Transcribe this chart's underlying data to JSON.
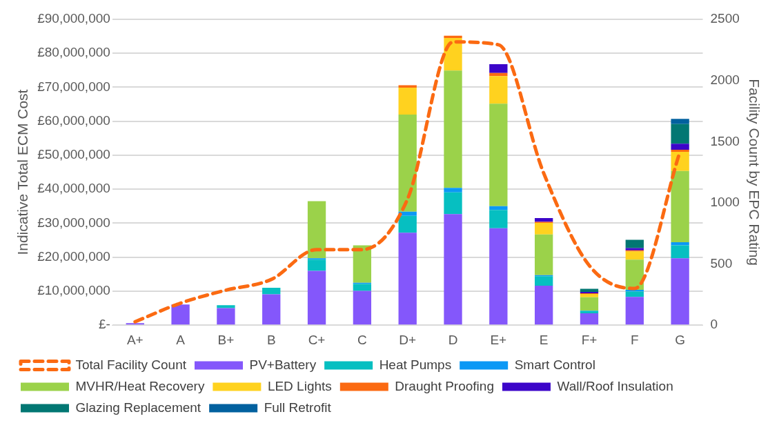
{
  "chart_data": {
    "type": "bar",
    "stacked": true,
    "ylabel": "Indicative Total ECM Cost",
    "y2label": "Facility Count by EPC Rating",
    "categories": [
      "A+",
      "A",
      "B+",
      "B",
      "C+",
      "C",
      "D+",
      "D",
      "E+",
      "E",
      "F+",
      "F",
      "G"
    ],
    "ylim": [
      0,
      90000000
    ],
    "yticks": [
      {
        "value": 0,
        "label": "£-"
      },
      {
        "value": 10000000,
        "label": "£10,000,000"
      },
      {
        "value": 20000000,
        "label": "£20,000,000"
      },
      {
        "value": 30000000,
        "label": "£30,000,000"
      },
      {
        "value": 40000000,
        "label": "£40,000,000"
      },
      {
        "value": 50000000,
        "label": "£50,000,000"
      },
      {
        "value": 60000000,
        "label": "£60,000,000"
      },
      {
        "value": 70000000,
        "label": "£70,000,000"
      },
      {
        "value": 80000000,
        "label": "£80,000,000"
      },
      {
        "value": 90000000,
        "label": "£90,000,000"
      }
    ],
    "y2lim": [
      0,
      2500
    ],
    "y2ticks": [
      0,
      500,
      1000,
      1500,
      2000,
      2500
    ],
    "grid": "y",
    "legend": "bottom",
    "series": [
      {
        "name": "PV+Battery",
        "color": "#8457fb",
        "values": [
          600000,
          6100000,
          5000000,
          9100000,
          16000000,
          10100000,
          27200000,
          32700000,
          28500000,
          11600000,
          3500000,
          8300000,
          19700000
        ]
      },
      {
        "name": "Heat Pumps",
        "color": "#06bfc1",
        "values": [
          0,
          0,
          900000,
          1900000,
          3300000,
          2000000,
          5000000,
          6400000,
          5400000,
          2800000,
          700000,
          1600000,
          3800000
        ]
      },
      {
        "name": "Smart Control",
        "color": "#0b98f5",
        "values": [
          0,
          0,
          0,
          0,
          400000,
          400000,
          1200000,
          1300000,
          1100000,
          300000,
          100000,
          500000,
          900000
        ]
      },
      {
        "name": "MVHR/Heat Recovery",
        "color": "#9bd24a",
        "values": [
          0,
          0,
          0,
          0,
          16800000,
          11000000,
          28600000,
          34500000,
          30200000,
          12000000,
          3900000,
          8900000,
          21000000
        ]
      },
      {
        "name": "LED Lights",
        "color": "#ffd21f",
        "values": [
          0,
          0,
          0,
          0,
          0,
          0,
          7900000,
          9600000,
          8100000,
          3400000,
          1000000,
          2400000,
          5600000
        ]
      },
      {
        "name": "Draught Proofing",
        "color": "#fb6a12",
        "values": [
          0,
          0,
          0,
          0,
          0,
          0,
          700000,
          700000,
          900000,
          300000,
          200000,
          300000,
          600000
        ]
      },
      {
        "name": "Wall/Roof Insulation",
        "color": "#3c05c9",
        "values": [
          0,
          0,
          0,
          0,
          0,
          0,
          0,
          0,
          2600000,
          1100000,
          400000,
          700000,
          1800000
        ]
      },
      {
        "name": "Glazing Replacement",
        "color": "#027773",
        "values": [
          0,
          0,
          0,
          0,
          0,
          0,
          0,
          0,
          0,
          0,
          900000,
          2400000,
          5800000
        ]
      },
      {
        "name": "Full Retrofit",
        "color": "#02619f",
        "values": [
          0,
          0,
          0,
          0,
          0,
          0,
          0,
          0,
          0,
          0,
          0,
          0,
          1500000
        ]
      },
      {
        "name": "Total Facility Count",
        "type": "line",
        "axis": "y2",
        "color": "#fb6a12",
        "line_style": "dashed",
        "marker": "none",
        "values": [
          28,
          180,
          286,
          374,
          618,
          618,
          1032,
          2315,
          2292,
          1240,
          488,
          300,
          1420
        ]
      }
    ]
  }
}
